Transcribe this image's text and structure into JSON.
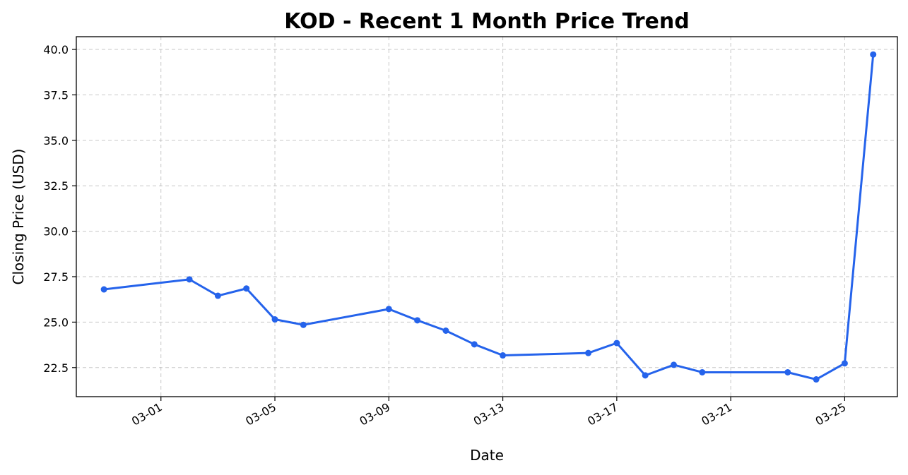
{
  "chart_data": {
    "type": "line",
    "title": "KOD - Recent 1 Month Price Trend",
    "xlabel": "Date",
    "ylabel": "Closing Price (USD)",
    "x_ticks": [
      "03-01",
      "03-05",
      "03-09",
      "03-13",
      "03-17",
      "03-21",
      "03-25"
    ],
    "y_ticks": [
      "22.5",
      "25.0",
      "27.5",
      "30.0",
      "32.5",
      "35.0",
      "37.5",
      "40.0"
    ],
    "ylim": [
      20.9,
      40.7
    ],
    "xlim": [
      "02-26",
      "03-27"
    ],
    "grid": true,
    "color": "#2563eb",
    "series": [
      {
        "x": [
          "02-27",
          "03-02",
          "03-03",
          "03-04",
          "03-05",
          "03-06",
          "03-09",
          "03-10",
          "03-11",
          "03-12",
          "03-13",
          "03-16",
          "03-17",
          "03-18",
          "03-19",
          "03-20",
          "03-23",
          "03-24",
          "03-25",
          "03-26"
        ],
        "values": [
          26.8,
          27.35,
          26.45,
          26.85,
          25.15,
          24.85,
          25.72,
          25.1,
          24.53,
          23.78,
          23.17,
          23.3,
          23.85,
          22.07,
          22.65,
          22.24,
          22.24,
          21.85,
          22.73,
          39.72
        ]
      }
    ]
  }
}
